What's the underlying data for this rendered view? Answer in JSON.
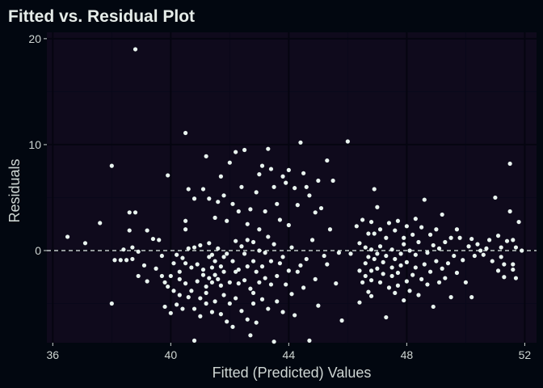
{
  "chart_data": {
    "type": "scatter",
    "title": "Fitted vs. Residual Plot",
    "xlabel": "Fitted (Predicted) Values",
    "ylabel": "Residuals",
    "xlim": [
      35.8,
      52.4
    ],
    "ylim": [
      -8.7,
      20.6
    ],
    "x_ticks": [
      36,
      40,
      44,
      48,
      52
    ],
    "y_ticks": [
      0,
      10,
      20
    ],
    "grid": true,
    "reference_line": {
      "y": 0,
      "style": "dashed"
    },
    "colors": {
      "background": "#020710",
      "panel": "#0f0a1c",
      "grid_major": "#050510",
      "grid_minor": "#09081a",
      "point": "#e9f4ef",
      "reference_line": "#e9f4ef",
      "text": "#cfd6d3",
      "title": "#e6ece9"
    },
    "points": [
      [
        36.5,
        1.3
      ],
      [
        37.1,
        0.7
      ],
      [
        37.6,
        2.6
      ],
      [
        38.0,
        8.0
      ],
      [
        38.0,
        -5.0
      ],
      [
        38.1,
        -0.9
      ],
      [
        38.3,
        -0.9
      ],
      [
        38.4,
        0.1
      ],
      [
        38.5,
        -0.9
      ],
      [
        38.6,
        1.9
      ],
      [
        38.6,
        3.6
      ],
      [
        38.7,
        -0.8
      ],
      [
        38.7,
        0.3
      ],
      [
        38.8,
        19.0
      ],
      [
        38.8,
        3.6
      ],
      [
        38.9,
        -2.4
      ],
      [
        38.9,
        -0.1
      ],
      [
        39.1,
        -1.4
      ],
      [
        39.2,
        1.9
      ],
      [
        39.2,
        -2.9
      ],
      [
        39.4,
        1.1
      ],
      [
        39.5,
        -1.7
      ],
      [
        39.6,
        1.0
      ],
      [
        39.7,
        -2.4
      ],
      [
        39.7,
        -0.5
      ],
      [
        39.8,
        -3.0
      ],
      [
        39.8,
        -5.3
      ],
      [
        39.9,
        7.1
      ],
      [
        39.9,
        -3.4
      ],
      [
        40.0,
        -2.4
      ],
      [
        40.0,
        -5.9
      ],
      [
        40.1,
        -1.2
      ],
      [
        40.1,
        -3.8
      ],
      [
        40.2,
        -0.4
      ],
      [
        40.2,
        -5.1
      ],
      [
        40.3,
        -2.0
      ],
      [
        40.3,
        -4.2
      ],
      [
        40.3,
        -2.7
      ],
      [
        40.4,
        -0.7
      ],
      [
        40.4,
        -5.5
      ],
      [
        40.5,
        11.1
      ],
      [
        40.5,
        -3.1
      ],
      [
        40.5,
        2.8
      ],
      [
        40.5,
        -1.2
      ],
      [
        40.5,
        2.0
      ],
      [
        40.6,
        -4.4
      ],
      [
        40.6,
        0.2
      ],
      [
        40.6,
        5.8
      ],
      [
        40.7,
        -1.6
      ],
      [
        40.7,
        -3.8
      ],
      [
        40.8,
        4.9
      ],
      [
        40.8,
        -5.5
      ],
      [
        40.8,
        -8.5
      ],
      [
        40.8,
        0.3
      ],
      [
        40.9,
        -2.9
      ],
      [
        40.9,
        -1.3
      ],
      [
        41.0,
        0.5
      ],
      [
        41.0,
        -4.5
      ],
      [
        41.0,
        -6.2
      ],
      [
        41.1,
        -1.8
      ],
      [
        41.1,
        5.8
      ],
      [
        41.1,
        -2.3
      ],
      [
        41.2,
        -3.4
      ],
      [
        41.2,
        8.9
      ],
      [
        41.2,
        -4.0
      ],
      [
        41.2,
        -5.0
      ],
      [
        41.3,
        0.7
      ],
      [
        41.3,
        -2.6
      ],
      [
        41.3,
        -0.6
      ],
      [
        41.3,
        4.9
      ],
      [
        41.4,
        -1.6
      ],
      [
        41.4,
        -5.8
      ],
      [
        41.4,
        -3.0
      ],
      [
        41.4,
        -0.4
      ],
      [
        41.5,
        -2.3
      ],
      [
        41.5,
        -4.8
      ],
      [
        41.5,
        -1.0
      ],
      [
        41.5,
        3.1
      ],
      [
        41.6,
        0.2
      ],
      [
        41.6,
        -2.7
      ],
      [
        41.6,
        4.6
      ],
      [
        41.7,
        -6.0
      ],
      [
        41.7,
        -1.5
      ],
      [
        41.7,
        -3.3
      ],
      [
        41.7,
        7.0
      ],
      [
        41.8,
        -0.6
      ],
      [
        41.8,
        5.2
      ],
      [
        41.8,
        -4.2
      ],
      [
        41.8,
        -2.0
      ],
      [
        41.9,
        -6.7
      ],
      [
        41.9,
        -0.3
      ],
      [
        41.9,
        2.8
      ],
      [
        42.0,
        -3.0
      ],
      [
        42.0,
        -5.0
      ],
      [
        42.0,
        8.3
      ],
      [
        42.1,
        -1.0
      ],
      [
        42.1,
        4.4
      ],
      [
        42.1,
        -7.2
      ],
      [
        42.2,
        0.9
      ],
      [
        42.2,
        -2.0
      ],
      [
        42.2,
        -4.5
      ],
      [
        42.2,
        9.3
      ],
      [
        42.3,
        -1.8
      ],
      [
        42.3,
        3.7
      ],
      [
        42.3,
        -3.1
      ],
      [
        42.4,
        0.4
      ],
      [
        42.4,
        6.0
      ],
      [
        42.4,
        -5.7
      ],
      [
        42.5,
        -0.3
      ],
      [
        42.5,
        -2.8
      ],
      [
        42.5,
        9.5
      ],
      [
        42.6,
        -6.5
      ],
      [
        42.6,
        2.5
      ],
      [
        42.6,
        1.0
      ],
      [
        42.6,
        -1.5
      ],
      [
        42.7,
        -3.6
      ],
      [
        42.7,
        3.9
      ],
      [
        42.7,
        -8.0
      ],
      [
        42.8,
        0.8
      ],
      [
        42.8,
        -1.0
      ],
      [
        42.8,
        -4.0
      ],
      [
        42.8,
        -5.0
      ],
      [
        42.9,
        5.5
      ],
      [
        42.9,
        -2.0
      ],
      [
        42.9,
        -6.8
      ],
      [
        43.0,
        7.2
      ],
      [
        43.0,
        0.0
      ],
      [
        43.0,
        -3.0
      ],
      [
        43.0,
        2.0
      ],
      [
        43.1,
        -1.5
      ],
      [
        43.1,
        8.0
      ],
      [
        43.1,
        -4.6
      ],
      [
        43.2,
        -0.2
      ],
      [
        43.2,
        3.7
      ],
      [
        43.2,
        -2.6
      ],
      [
        43.3,
        9.6
      ],
      [
        43.3,
        -5.5
      ],
      [
        43.3,
        1.3
      ],
      [
        43.4,
        -1.0
      ],
      [
        43.4,
        7.7
      ],
      [
        43.4,
        -3.2
      ],
      [
        43.5,
        6.0
      ],
      [
        43.5,
        -8.6
      ],
      [
        43.5,
        0.6
      ],
      [
        43.6,
        -2.4
      ],
      [
        43.6,
        4.4
      ],
      [
        43.6,
        -4.8
      ],
      [
        43.7,
        2.9
      ],
      [
        43.7,
        -1.2
      ],
      [
        43.8,
        7.0
      ],
      [
        43.8,
        -5.8
      ],
      [
        43.8,
        -0.6
      ],
      [
        43.9,
        6.4
      ],
      [
        43.9,
        -3.2
      ],
      [
        44.0,
        2.4
      ],
      [
        44.0,
        -1.9
      ],
      [
        44.0,
        7.6
      ],
      [
        44.1,
        -4.1
      ],
      [
        44.1,
        0.3
      ],
      [
        44.2,
        5.9
      ],
      [
        44.2,
        -6.1
      ],
      [
        44.3,
        4.3
      ],
      [
        44.3,
        -2.0
      ],
      [
        44.4,
        10.2
      ],
      [
        44.4,
        -1.4
      ],
      [
        44.5,
        7.3
      ],
      [
        44.5,
        -3.5
      ],
      [
        44.6,
        6.0
      ],
      [
        44.6,
        -0.8
      ],
      [
        44.7,
        -8.5
      ],
      [
        44.7,
        5.2
      ],
      [
        44.8,
        1.0
      ],
      [
        44.9,
        3.6
      ],
      [
        44.9,
        -2.7
      ],
      [
        45.0,
        6.6
      ],
      [
        45.0,
        -5.2
      ],
      [
        45.1,
        4.0
      ],
      [
        45.2,
        -0.5
      ],
      [
        45.3,
        8.5
      ],
      [
        45.3,
        -1.3
      ],
      [
        45.4,
        2.0
      ],
      [
        45.5,
        6.6
      ],
      [
        45.6,
        -3.1
      ],
      [
        45.7,
        -0.2
      ],
      [
        45.8,
        -6.6
      ],
      [
        46.0,
        10.3
      ],
      [
        46.1,
        -0.3
      ],
      [
        46.3,
        2.3
      ],
      [
        46.4,
        -1.9
      ],
      [
        46.4,
        0.7
      ],
      [
        46.4,
        -4.9
      ],
      [
        46.5,
        2.9
      ],
      [
        46.5,
        -3.0
      ],
      [
        46.6,
        0.3
      ],
      [
        46.6,
        -1.2
      ],
      [
        46.6,
        -2.4
      ],
      [
        46.7,
        1.6
      ],
      [
        46.7,
        -3.9
      ],
      [
        46.7,
        -0.6
      ],
      [
        46.8,
        0.1
      ],
      [
        46.8,
        -4.3
      ],
      [
        46.8,
        2.7
      ],
      [
        46.8,
        -1.9
      ],
      [
        46.8,
        -2.8
      ],
      [
        46.9,
        5.8
      ],
      [
        46.9,
        -0.8
      ],
      [
        46.9,
        1.6
      ],
      [
        47.0,
        -1.7
      ],
      [
        47.0,
        4.1
      ],
      [
        47.0,
        -0.3
      ],
      [
        47.1,
        -3.0
      ],
      [
        47.1,
        2.0
      ],
      [
        47.1,
        0.4
      ],
      [
        47.2,
        -2.2
      ],
      [
        47.2,
        -1.1
      ],
      [
        47.3,
        -6.3
      ],
      [
        47.3,
        1.2
      ],
      [
        47.3,
        -0.5
      ],
      [
        47.4,
        -3.5
      ],
      [
        47.4,
        2.6
      ],
      [
        47.5,
        -1.6
      ],
      [
        47.5,
        0.1
      ],
      [
        47.5,
        -2.4
      ],
      [
        47.6,
        -4.0
      ],
      [
        47.6,
        1.9
      ],
      [
        47.6,
        -0.8
      ],
      [
        47.7,
        2.8
      ],
      [
        47.7,
        -2.1
      ],
      [
        47.7,
        -3.3
      ],
      [
        47.8,
        -0.3
      ],
      [
        47.8,
        -1.4
      ],
      [
        47.9,
        1.2
      ],
      [
        47.9,
        -4.7
      ],
      [
        47.9,
        0.6
      ],
      [
        48.0,
        -2.9
      ],
      [
        48.0,
        2.3
      ],
      [
        48.0,
        -1.1
      ],
      [
        48.1,
        0.0
      ],
      [
        48.1,
        -3.8
      ],
      [
        48.2,
        1.5
      ],
      [
        48.2,
        -2.3
      ],
      [
        48.3,
        -0.4
      ],
      [
        48.3,
        3.0
      ],
      [
        48.3,
        -1.6
      ],
      [
        48.4,
        -4.2
      ],
      [
        48.4,
        0.8
      ],
      [
        48.5,
        -2.7
      ],
      [
        48.5,
        2.2
      ],
      [
        48.6,
        -1.3
      ],
      [
        48.6,
        4.8
      ],
      [
        48.7,
        -0.2
      ],
      [
        48.7,
        -3.2
      ],
      [
        48.8,
        1.5
      ],
      [
        48.8,
        -2.0
      ],
      [
        48.9,
        -5.3
      ],
      [
        48.9,
        0.5
      ],
      [
        49.0,
        -1.0
      ],
      [
        49.0,
        2.0
      ],
      [
        49.1,
        -3.0
      ],
      [
        49.1,
        0.2
      ],
      [
        49.2,
        -1.7
      ],
      [
        49.2,
        3.4
      ],
      [
        49.3,
        -2.6
      ],
      [
        49.3,
        0.8
      ],
      [
        49.4,
        -1.2
      ],
      [
        49.5,
        -4.4
      ],
      [
        49.5,
        1.2
      ],
      [
        49.6,
        -0.5
      ],
      [
        49.7,
        -2.1
      ],
      [
        49.7,
        2.0
      ],
      [
        49.8,
        1.2
      ],
      [
        49.9,
        -0.9
      ],
      [
        50.0,
        -3.0
      ],
      [
        50.1,
        0.4
      ],
      [
        50.2,
        -4.4
      ],
      [
        50.2,
        1.1
      ],
      [
        50.3,
        -0.5
      ],
      [
        50.4,
        0.6
      ],
      [
        50.5,
        0.0
      ],
      [
        50.6,
        -0.4
      ],
      [
        50.7,
        0.2
      ],
      [
        50.8,
        1.0
      ],
      [
        50.9,
        -1.0
      ],
      [
        51.0,
        5.0
      ],
      [
        51.1,
        -1.9
      ],
      [
        51.1,
        1.4
      ],
      [
        51.2,
        -0.6
      ],
      [
        51.2,
        0.3
      ],
      [
        51.3,
        -2.5
      ],
      [
        51.3,
        -1.3
      ],
      [
        51.4,
        0.9
      ],
      [
        51.5,
        8.2
      ],
      [
        51.5,
        3.7
      ],
      [
        51.6,
        -1.8
      ],
      [
        51.6,
        -1.3
      ],
      [
        51.6,
        1.0
      ],
      [
        51.7,
        0.3
      ],
      [
        51.7,
        -2.6
      ],
      [
        51.8,
        2.7
      ],
      [
        51.9,
        0.0
      ]
    ]
  }
}
